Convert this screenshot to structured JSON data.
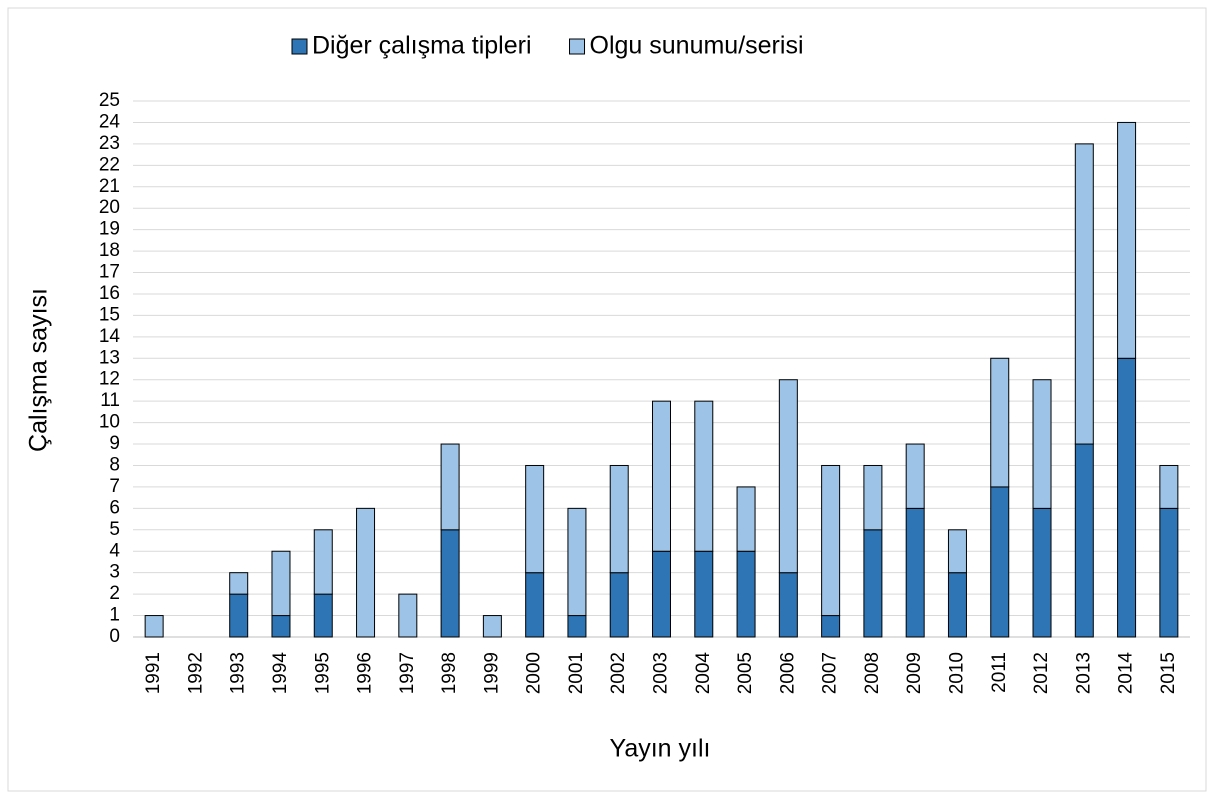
{
  "chart_data": {
    "type": "stacked_bar",
    "xlabel": "Yayın yılı",
    "ylabel": "Çalışma sayısı",
    "categories": [
      "1991",
      "1992",
      "1993",
      "1994",
      "1995",
      "1996",
      "1997",
      "1998",
      "1999",
      "2000",
      "2001",
      "2002",
      "2003",
      "2004",
      "2005",
      "2006",
      "2007",
      "2008",
      "2009",
      "2010",
      "2011",
      "2012",
      "2013",
      "2014",
      "2015"
    ],
    "series": [
      {
        "name": "Diğer çalışma tipleri",
        "color": "#2e75b6",
        "values": [
          0,
          0,
          2,
          1,
          2,
          0,
          0,
          5,
          0,
          3,
          1,
          3,
          4,
          4,
          4,
          3,
          1,
          5,
          6,
          3,
          7,
          6,
          9,
          13,
          6
        ]
      },
      {
        "name": "Olgu sunumu/serisi",
        "color": "#9dc3e6",
        "values": [
          1,
          0,
          1,
          3,
          3,
          6,
          2,
          4,
          1,
          5,
          5,
          5,
          7,
          7,
          3,
          9,
          7,
          3,
          3,
          2,
          6,
          6,
          14,
          11,
          2
        ]
      }
    ],
    "ylim": [
      0,
      25
    ],
    "yticks": [
      0,
      1,
      2,
      3,
      4,
      5,
      6,
      7,
      8,
      9,
      10,
      11,
      12,
      13,
      14,
      15,
      16,
      17,
      18,
      19,
      20,
      21,
      22,
      23,
      24,
      25
    ],
    "grid": true,
    "legend": "top"
  }
}
